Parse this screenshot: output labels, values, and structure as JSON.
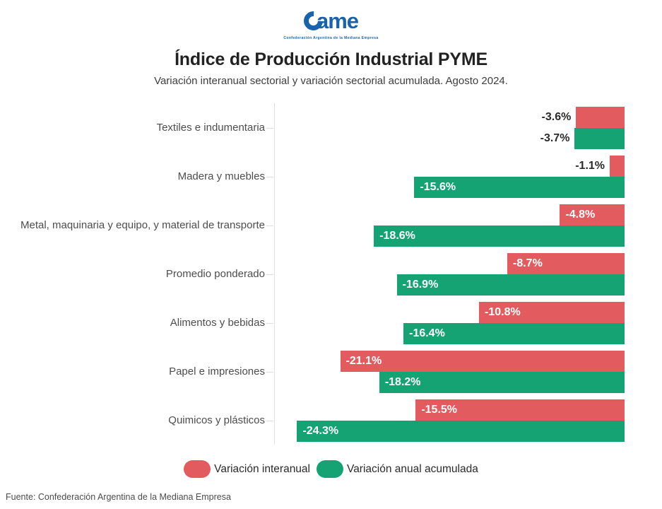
{
  "logo": {
    "text": "ame",
    "caption": "Confederación Argentina de la Mediana Empresa",
    "color": "#1863ac"
  },
  "header": {
    "title": "Índice de Producción Industrial PYME",
    "subtitle": "Variación interanual sectorial y variación sectorial acumulada. Agosto 2024."
  },
  "chart_data": {
    "type": "bar",
    "orientation": "horizontal",
    "unit": "%",
    "title": "Índice de Producción Industrial PYME",
    "subtitle": "Variación interanual sectorial y variación sectorial acumulada. Agosto 2024.",
    "categories": [
      "Textiles e indumentaria",
      "Madera y muebles",
      "Metal, maquinaria y equipo, y material de transporte",
      "Promedio ponderado",
      "Alimentos y bebidas",
      "Papel e impresiones",
      "Quimicos y plásticos"
    ],
    "series": [
      {
        "name": "Variación interanual",
        "color": "#e25b5e",
        "values": [
          -3.6,
          -1.1,
          -4.8,
          -8.7,
          -10.8,
          -21.1,
          -15.5
        ]
      },
      {
        "name": "Variación anual acumulada",
        "color": "#15a374",
        "values": [
          -3.7,
          -15.6,
          -18.6,
          -16.9,
          -16.4,
          -18.2,
          -24.3
        ]
      }
    ],
    "xlim": [
      -26,
      0
    ],
    "grid": false,
    "value_labels": true,
    "legend_position": "bottom"
  },
  "footer": {
    "source": "Fuente: Confederación Argentina de la Mediana Empresa"
  }
}
